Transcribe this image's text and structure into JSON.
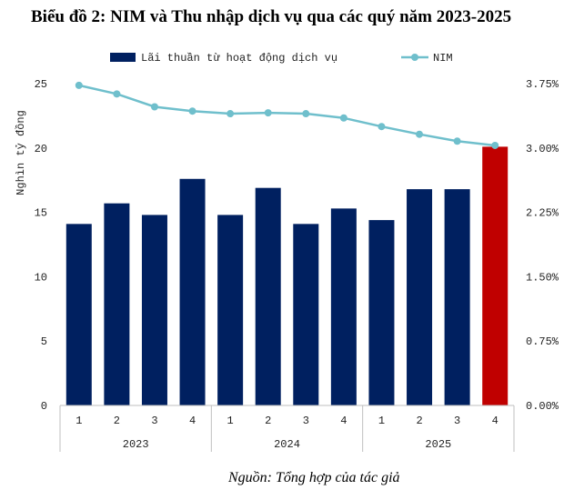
{
  "title": "Biểu đồ 2: NIM và Thu nhập dịch vụ qua các quý năm 2023-2025",
  "source": "Nguồn: Tổng hợp của tác giả",
  "chart_data": {
    "type": "bar",
    "categories": [
      "1",
      "2",
      "3",
      "4",
      "1",
      "2",
      "3",
      "4",
      "1",
      "2",
      "3",
      "4"
    ],
    "groups": [
      "2023",
      "2024",
      "2025"
    ],
    "series": [
      {
        "name": "Lãi thuần từ hoạt động dịch vụ",
        "type": "bar",
        "axis": "left",
        "values": [
          14.1,
          15.7,
          14.8,
          17.6,
          14.8,
          16.9,
          14.1,
          15.3,
          14.4,
          16.8,
          16.8,
          20.1
        ],
        "color": "#002060",
        "highlight_color": "#c00000",
        "highlight_index": 11
      },
      {
        "name": "NIM",
        "type": "line",
        "axis": "right",
        "values": [
          3.73,
          3.63,
          3.48,
          3.43,
          3.4,
          3.41,
          3.4,
          3.35,
          3.25,
          3.16,
          3.08,
          3.03
        ],
        "color": "#6fbfcc"
      }
    ],
    "ylabel": "Nghìn tỷ đồng",
    "ylim": [
      0,
      25
    ],
    "yticks": [
      "0",
      "5",
      "10",
      "15",
      "20",
      "25"
    ],
    "y2lim": [
      0,
      3.75
    ],
    "y2ticks": [
      "0.00%",
      "0.75%",
      "1.50%",
      "2.25%",
      "3.00%",
      "3.75%"
    ],
    "legend_position": "top"
  }
}
